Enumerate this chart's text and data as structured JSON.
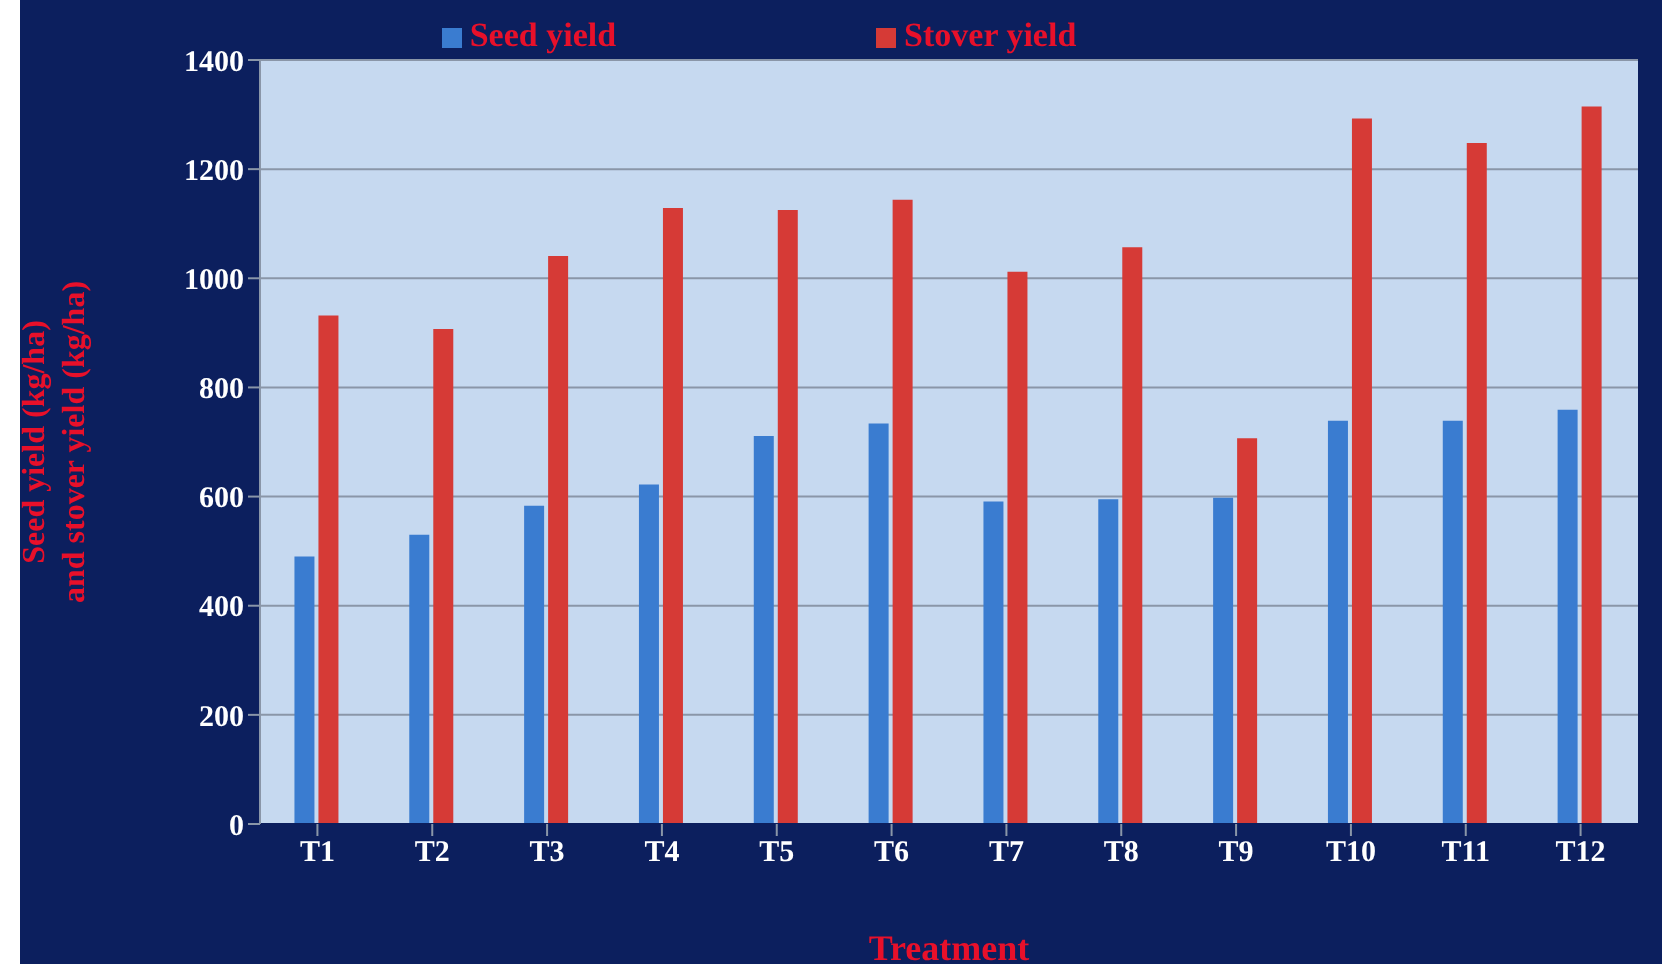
{
  "chart_data": {
    "type": "bar",
    "xlabel": "Treatment",
    "ylabel": "Seed yield (kg/ha)\nand stover yield (kg/ha)",
    "categories": [
      "T1",
      "T2",
      "T3",
      "T4",
      "T5",
      "T6",
      "T7",
      "T8",
      "T9",
      "T10",
      "T11",
      "T12"
    ],
    "series": [
      {
        "name": "Seed yield",
        "color": "#3a7cd0",
        "values": [
          490,
          530,
          583,
          622,
          711,
          734,
          591,
          595,
          598,
          739,
          739,
          759
        ]
      },
      {
        "name": "Stover yield",
        "color": "#d63a36",
        "values": [
          932,
          907,
          1041,
          1129,
          1125,
          1144,
          1012,
          1057,
          707,
          1293,
          1248,
          1315
        ]
      }
    ],
    "ylim": [
      0,
      1400
    ],
    "yticks": [
      0,
      200,
      400,
      600,
      800,
      1000,
      1200,
      1400
    ],
    "grid": "y",
    "legend": "top"
  }
}
